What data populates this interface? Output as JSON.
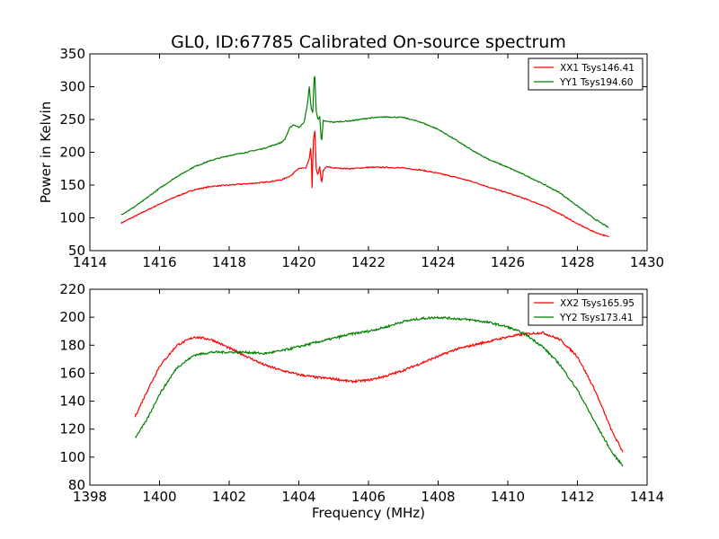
{
  "title": "GL0, ID:67785 Calibrated On-source spectrum",
  "chart_data": [
    {
      "type": "line",
      "title": "GL0, ID:67785 Calibrated On-source spectrum",
      "xlabel": "",
      "ylabel": "Power in Kelvin",
      "xlim": [
        1414,
        1430
      ],
      "ylim": [
        50,
        350
      ],
      "xticks": [
        "1414",
        "1416",
        "1418",
        "1420",
        "1422",
        "1424",
        "1426",
        "1428",
        "1430"
      ],
      "yticks": [
        "50",
        "100",
        "150",
        "200",
        "250",
        "300",
        "350"
      ],
      "grid": false,
      "legend_position": "top-right",
      "series": [
        {
          "name": "XX1 Tsys146.41",
          "color": "#ff0000",
          "points": [
            [
              1414.9,
              92
            ],
            [
              1415.2,
              100
            ],
            [
              1415.5,
              108
            ],
            [
              1416.0,
              121
            ],
            [
              1416.5,
              133
            ],
            [
              1417.0,
              143
            ],
            [
              1417.5,
              148
            ],
            [
              1418.0,
              150
            ],
            [
              1418.5,
              152
            ],
            [
              1419.0,
              154
            ],
            [
              1419.5,
              158
            ],
            [
              1419.8,
              165
            ],
            [
              1419.9,
              172
            ],
            [
              1420.0,
              175
            ],
            [
              1420.2,
              176
            ],
            [
              1420.3,
              190
            ],
            [
              1420.35,
              210
            ],
            [
              1420.38,
              145
            ],
            [
              1420.42,
              220
            ],
            [
              1420.46,
              232
            ],
            [
              1420.5,
              175
            ],
            [
              1420.55,
              165
            ],
            [
              1420.6,
              178
            ],
            [
              1420.65,
              152
            ],
            [
              1420.7,
              172
            ],
            [
              1420.8,
              178
            ],
            [
              1421.0,
              176
            ],
            [
              1421.5,
              175
            ],
            [
              1422.0,
              177
            ],
            [
              1422.5,
              177
            ],
            [
              1423.0,
              176
            ],
            [
              1423.5,
              173
            ],
            [
              1424.0,
              168
            ],
            [
              1424.5,
              162
            ],
            [
              1425.0,
              155
            ],
            [
              1425.5,
              146
            ],
            [
              1426.0,
              138
            ],
            [
              1426.5,
              129
            ],
            [
              1427.0,
              119
            ],
            [
              1427.5,
              106
            ],
            [
              1428.0,
              91
            ],
            [
              1428.5,
              78
            ],
            [
              1428.9,
              71
            ]
          ]
        },
        {
          "name": "YY1 Tsys194.60",
          "color": "#008000",
          "points": [
            [
              1414.9,
              105
            ],
            [
              1415.2,
              114
            ],
            [
              1415.5,
              125
            ],
            [
              1416.0,
              145
            ],
            [
              1416.5,
              163
            ],
            [
              1417.0,
              178
            ],
            [
              1417.5,
              188
            ],
            [
              1418.0,
              195
            ],
            [
              1418.5,
              200
            ],
            [
              1419.0,
              206
            ],
            [
              1419.5,
              215
            ],
            [
              1419.6,
              220
            ],
            [
              1419.75,
              238
            ],
            [
              1419.85,
              242
            ],
            [
              1420.0,
              238
            ],
            [
              1420.15,
              245
            ],
            [
              1420.25,
              275
            ],
            [
              1420.3,
              300
            ],
            [
              1420.35,
              268
            ],
            [
              1420.4,
              260
            ],
            [
              1420.45,
              328
            ],
            [
              1420.5,
              262
            ],
            [
              1420.55,
              250
            ],
            [
              1420.6,
              255
            ],
            [
              1420.65,
              212
            ],
            [
              1420.7,
              248
            ],
            [
              1420.8,
              247
            ],
            [
              1421.0,
              246
            ],
            [
              1421.5,
              248
            ],
            [
              1422.0,
              252
            ],
            [
              1422.5,
              254
            ],
            [
              1423.0,
              253
            ],
            [
              1423.5,
              246
            ],
            [
              1424.0,
              235
            ],
            [
              1424.5,
              219
            ],
            [
              1425.0,
              202
            ],
            [
              1425.5,
              188
            ],
            [
              1426.0,
              177
            ],
            [
              1426.5,
              165
            ],
            [
              1427.0,
              152
            ],
            [
              1427.5,
              138
            ],
            [
              1428.0,
              118
            ],
            [
              1428.5,
              98
            ],
            [
              1428.9,
              85
            ]
          ]
        }
      ]
    },
    {
      "type": "line",
      "title": "",
      "xlabel": "Frequency (MHz)",
      "ylabel": "",
      "xlim": [
        1398,
        1414
      ],
      "ylim": [
        80,
        220
      ],
      "xticks": [
        "1398",
        "1400",
        "1402",
        "1404",
        "1406",
        "1408",
        "1410",
        "1412",
        "1414"
      ],
      "yticks": [
        "80",
        "100",
        "120",
        "140",
        "160",
        "180",
        "200",
        "220"
      ],
      "grid": false,
      "legend_position": "top-right",
      "series": [
        {
          "name": "XX2 Tsys165.95",
          "color": "#ff0000",
          "points": [
            [
              1399.3,
              129
            ],
            [
              1399.6,
              145
            ],
            [
              1400.0,
              165
            ],
            [
              1400.5,
              180
            ],
            [
              1401.0,
              186
            ],
            [
              1401.5,
              184
            ],
            [
              1402.0,
              178
            ],
            [
              1402.5,
              172
            ],
            [
              1403.0,
              166
            ],
            [
              1403.5,
              162
            ],
            [
              1404.0,
              159
            ],
            [
              1404.5,
              157
            ],
            [
              1405.0,
              156
            ],
            [
              1405.5,
              154
            ],
            [
              1406.0,
              155
            ],
            [
              1406.5,
              158
            ],
            [
              1407.0,
              162
            ],
            [
              1407.5,
              167
            ],
            [
              1408.0,
              172
            ],
            [
              1408.5,
              177
            ],
            [
              1409.0,
              180
            ],
            [
              1409.5,
              183
            ],
            [
              1410.0,
              186
            ],
            [
              1410.5,
              188
            ],
            [
              1411.0,
              189
            ],
            [
              1411.5,
              184
            ],
            [
              1412.0,
              172
            ],
            [
              1412.5,
              148
            ],
            [
              1413.0,
              118
            ],
            [
              1413.3,
              104
            ]
          ]
        },
        {
          "name": "YY2 Tsys173.41",
          "color": "#008000",
          "points": [
            [
              1399.3,
              114
            ],
            [
              1399.6,
              125
            ],
            [
              1400.0,
              145
            ],
            [
              1400.5,
              164
            ],
            [
              1401.0,
              173
            ],
            [
              1401.5,
              175
            ],
            [
              1402.0,
              175
            ],
            [
              1402.5,
              175
            ],
            [
              1403.0,
              174
            ],
            [
              1403.5,
              176
            ],
            [
              1404.0,
              179
            ],
            [
              1404.5,
              182
            ],
            [
              1405.0,
              185
            ],
            [
              1405.5,
              188
            ],
            [
              1406.0,
              190
            ],
            [
              1406.5,
              193
            ],
            [
              1407.0,
              197
            ],
            [
              1407.5,
              199
            ],
            [
              1408.0,
              200
            ],
            [
              1408.5,
              199
            ],
            [
              1409.0,
              198
            ],
            [
              1409.5,
              196
            ],
            [
              1410.0,
              193
            ],
            [
              1410.5,
              188
            ],
            [
              1411.0,
              179
            ],
            [
              1411.5,
              166
            ],
            [
              1412.0,
              148
            ],
            [
              1412.5,
              125
            ],
            [
              1413.0,
              103
            ],
            [
              1413.3,
              94
            ]
          ]
        }
      ]
    }
  ]
}
